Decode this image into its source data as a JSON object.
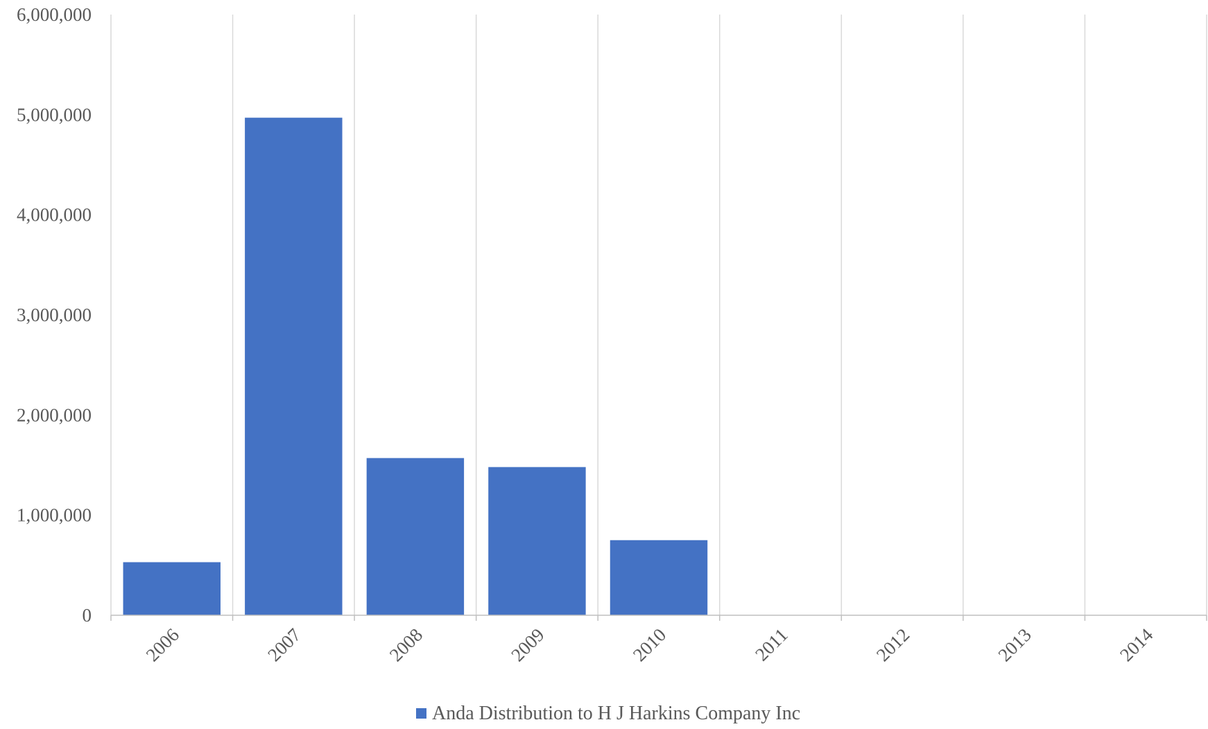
{
  "chart_data": {
    "type": "bar",
    "title": "",
    "xlabel": "",
    "ylabel": "",
    "categories": [
      "2006",
      "2007",
      "2008",
      "2009",
      "2010",
      "2011",
      "2012",
      "2013",
      "2014"
    ],
    "series": [
      {
        "name": "Anda Distribution to H J Harkins Company Inc",
        "values": [
          530000,
          4970000,
          1570000,
          1480000,
          750000,
          0,
          0,
          0,
          0
        ],
        "color": "#4472C4"
      }
    ],
    "ylim": [
      0,
      6000000
    ],
    "yticks": [
      "0",
      "1,000,000",
      "2,000,000",
      "3,000,000",
      "4,000,000",
      "5,000,000",
      "6,000,000"
    ],
    "ytick_values": [
      0,
      1000000,
      2000000,
      3000000,
      4000000,
      5000000,
      6000000
    ],
    "grid": "vertical",
    "legend_position": "bottom",
    "colors": {
      "bar": "#4472C4",
      "grid": "#d9d9d9",
      "axis": "#bfbfbf",
      "text": "#595959"
    }
  }
}
